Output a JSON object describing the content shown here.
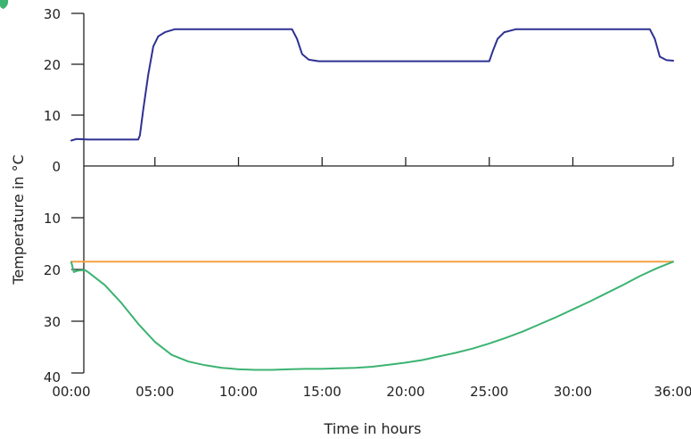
{
  "chart_data": {
    "type": "line",
    "xlabel": "Time in hours",
    "ylabel": "Temperature in °C",
    "x_ticks": [
      "00:00",
      "05:00",
      "10:00",
      "15:00",
      "20:00",
      "25:00",
      "30:00",
      "36:00"
    ],
    "x_range": [
      0,
      36
    ],
    "upper_panel": {
      "y_ticks": [
        "30",
        "20",
        "10",
        "0"
      ],
      "ylim": [
        0,
        30
      ],
      "series": [
        {
          "color": "#2e3192",
          "x": [
            0,
            0.3,
            1,
            2,
            3,
            4,
            4.1,
            4.3,
            4.6,
            4.9,
            5.2,
            5.6,
            6.2,
            7,
            10,
            13.2,
            13.5,
            13.8,
            14.2,
            14.8,
            15.5,
            20,
            25,
            25.2,
            25.5,
            25.9,
            26.6,
            27.5,
            30,
            34,
            34.6,
            34.9,
            35.2,
            35.6,
            36
          ],
          "values": [
            5,
            5.3,
            5.2,
            5.2,
            5.2,
            5.2,
            6,
            11,
            18,
            23.5,
            25.5,
            26.3,
            26.9,
            26.9,
            26.9,
            26.9,
            25,
            22,
            20.9,
            20.6,
            20.6,
            20.6,
            20.6,
            22.5,
            25,
            26.3,
            26.9,
            26.9,
            26.9,
            26.9,
            26.9,
            25,
            21.5,
            20.8,
            20.7
          ]
        }
      ]
    },
    "lower_panel": {
      "y_ticks": [
        "10",
        "20",
        "30",
        "40"
      ],
      "ylim": [
        0,
        40
      ],
      "inverted": true,
      "series": [
        {
          "color": "#f5a043",
          "x": [
            0,
            36
          ],
          "values": [
            18.5,
            18.5
          ]
        },
        {
          "color": "#3cb371",
          "x": [
            0,
            0.15,
            0.4,
            0.8,
            1,
            2,
            3,
            4,
            5,
            6,
            7,
            8,
            9,
            10,
            11,
            12,
            13,
            14,
            15,
            16,
            17,
            18,
            19,
            20,
            21,
            22,
            23,
            24,
            25,
            26,
            27,
            28,
            29,
            30,
            31,
            32,
            33,
            34,
            35,
            36
          ],
          "values": [
            18.6,
            20.5,
            20.2,
            20.1,
            20.5,
            23,
            26.5,
            30.5,
            34,
            36.5,
            37.8,
            38.5,
            39,
            39.3,
            39.4,
            39.4,
            39.3,
            39.2,
            39.2,
            39.1,
            39,
            38.8,
            38.4,
            38,
            37.5,
            36.8,
            36.1,
            35.3,
            34.3,
            33.2,
            32,
            30.6,
            29.2,
            27.7,
            26.2,
            24.6,
            23,
            21.3,
            19.8,
            18.5
          ]
        }
      ]
    }
  }
}
